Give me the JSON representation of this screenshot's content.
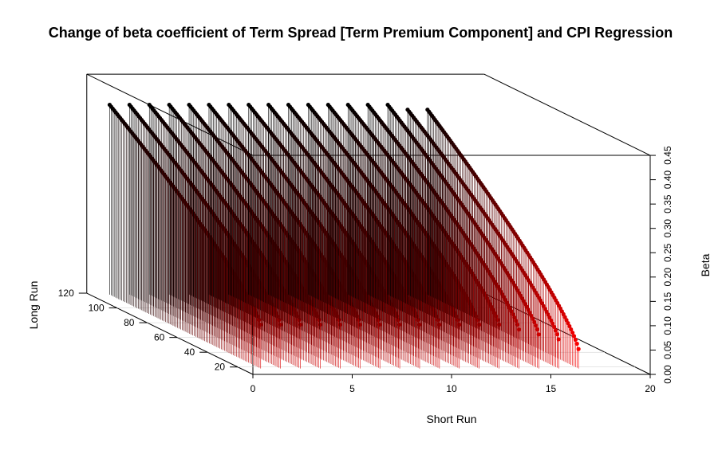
{
  "chart_data": {
    "type": "scatter",
    "subtype": "3d-histogram-scatter",
    "title": "Change of beta coefficient of Term Spread [Term Premium Component] and CPI Regression",
    "xlabel": "Short Run",
    "ylabel": "Long Run",
    "zlabel": "Beta",
    "xlim": [
      0,
      20
    ],
    "ylim": [
      10,
      120
    ],
    "zlim": [
      0,
      0.45
    ],
    "x_ticks": [
      "0",
      "5",
      "10",
      "15",
      "20"
    ],
    "y_ticks": [
      "20",
      "40",
      "60",
      "80",
      "100",
      "120"
    ],
    "z_ticks": [
      "0.00",
      "0.05",
      "0.10",
      "0.15",
      "0.20",
      "0.25",
      "0.30",
      "0.35",
      "0.40",
      "0.45"
    ],
    "short_run_values": [
      1,
      2,
      3,
      4,
      5,
      6,
      7,
      8,
      9,
      10,
      11,
      12,
      13,
      14,
      15,
      16,
      17
    ],
    "long_run_range": [
      18,
      118
    ],
    "series": [
      {
        "short_run": 1,
        "beta_at_long_run_118": 0.39,
        "beta_at_long_run_18": 0.09
      },
      {
        "short_run": 2,
        "beta_at_long_run_118": 0.39,
        "beta_at_long_run_18": 0.09
      },
      {
        "short_run": 3,
        "beta_at_long_run_118": 0.39,
        "beta_at_long_run_18": 0.09
      },
      {
        "short_run": 4,
        "beta_at_long_run_118": 0.39,
        "beta_at_long_run_18": 0.09
      },
      {
        "short_run": 5,
        "beta_at_long_run_118": 0.39,
        "beta_at_long_run_18": 0.09
      },
      {
        "short_run": 6,
        "beta_at_long_run_118": 0.39,
        "beta_at_long_run_18": 0.09
      },
      {
        "short_run": 7,
        "beta_at_long_run_118": 0.39,
        "beta_at_long_run_18": 0.09
      },
      {
        "short_run": 8,
        "beta_at_long_run_118": 0.39,
        "beta_at_long_run_18": 0.09
      },
      {
        "short_run": 9,
        "beta_at_long_run_118": 0.39,
        "beta_at_long_run_18": 0.09
      },
      {
        "short_run": 10,
        "beta_at_long_run_118": 0.39,
        "beta_at_long_run_18": 0.09
      },
      {
        "short_run": 11,
        "beta_at_long_run_118": 0.39,
        "beta_at_long_run_18": 0.09
      },
      {
        "short_run": 12,
        "beta_at_long_run_118": 0.39,
        "beta_at_long_run_18": 0.09
      },
      {
        "short_run": 13,
        "beta_at_long_run_118": 0.39,
        "beta_at_long_run_18": 0.09
      },
      {
        "short_run": 14,
        "beta_at_long_run_118": 0.39,
        "beta_at_long_run_18": 0.08
      },
      {
        "short_run": 15,
        "beta_at_long_run_118": 0.39,
        "beta_at_long_run_18": 0.07
      },
      {
        "short_run": 16,
        "beta_at_long_run_118": 0.38,
        "beta_at_long_run_18": 0.06
      },
      {
        "short_run": 17,
        "beta_at_long_run_118": 0.38,
        "beta_at_long_run_18": 0.04
      }
    ],
    "color_scale": {
      "low_beta": "#ff0000",
      "high_beta": "#000000"
    },
    "grid": false,
    "legend": "none",
    "box": true
  }
}
